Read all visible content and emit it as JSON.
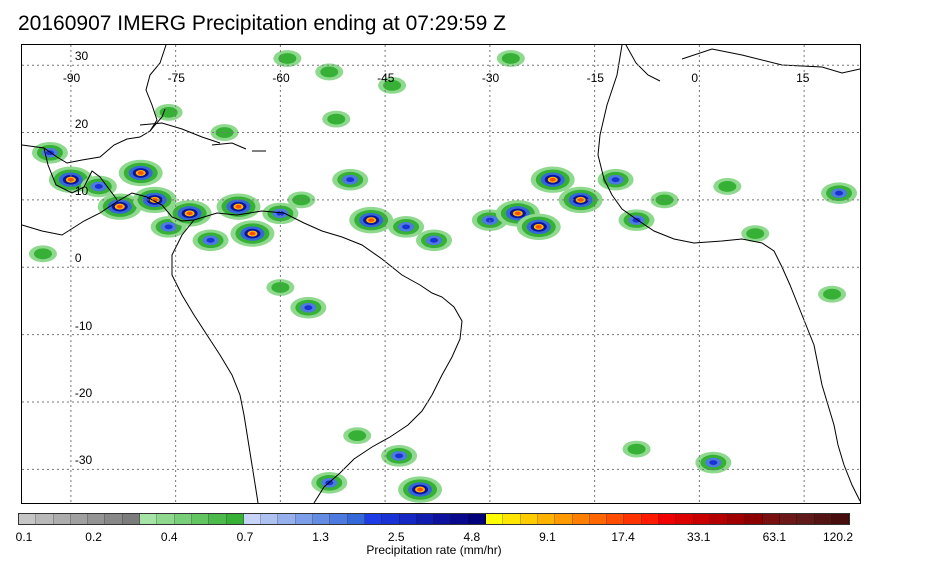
{
  "title": "20160907 IMERG Precipitation ending at 07:29:59 Z",
  "map": {
    "lon_range": [
      -97,
      23
    ],
    "lat_range": [
      -35,
      33
    ],
    "lon_labels": [
      "-90",
      "-75",
      "-60",
      "-45",
      "-30",
      "-15",
      "0",
      "15"
    ],
    "lon_values": [
      -90,
      -75,
      -60,
      -45,
      -30,
      -15,
      0,
      15
    ],
    "lat_labels": [
      "30",
      "20",
      "10",
      "0",
      "-10",
      "-20",
      "-30"
    ],
    "lat_values": [
      30,
      20,
      10,
      0,
      -10,
      -20,
      -30
    ],
    "grid": "dotted",
    "coast_color": "#000000"
  },
  "colorbar": {
    "label": "Precipitation rate (mm/hr)",
    "tick_labels": [
      "0.1",
      "0.2",
      "0.4",
      "0.7",
      "1.3",
      "2.5",
      "4.8",
      "9.1",
      "17.4",
      "33.1",
      "63.1",
      "120.2"
    ],
    "colors": [
      "#c6c6c6",
      "#b9b9b9",
      "#adadad",
      "#a0a0a0",
      "#949494",
      "#888888",
      "#7c7c7c",
      "#a6e3a6",
      "#8fd98f",
      "#79cf79",
      "#62c562",
      "#4cbb4c",
      "#36b136",
      "#c7d4f7",
      "#aec2f2",
      "#96b0ed",
      "#7d9ee8",
      "#658ce3",
      "#4c7ade",
      "#3468d9",
      "#1e3ce6",
      "#1a31d4",
      "#1527c2",
      "#101cb0",
      "#0c129e",
      "#08088c",
      "#00007a",
      "#ffff00",
      "#ffe600",
      "#ffcc00",
      "#ffb300",
      "#ff9900",
      "#ff8000",
      "#ff6600",
      "#ff4d00",
      "#ff3300",
      "#ff1a00",
      "#f00000",
      "#dc0000",
      "#c80000",
      "#b40000",
      "#a00000",
      "#8c0000",
      "#781010",
      "#6c1818",
      "#601a1a",
      "#541414",
      "#480e0e"
    ]
  },
  "precip_cells": [
    {
      "lon": -93,
      "lat": 17,
      "intensity": 2
    },
    {
      "lon": -90,
      "lat": 13,
      "intensity": 3
    },
    {
      "lon": -86,
      "lat": 12,
      "intensity": 2
    },
    {
      "lon": -83,
      "lat": 9,
      "intensity": 3
    },
    {
      "lon": -80,
      "lat": 14,
      "intensity": 3
    },
    {
      "lon": -78,
      "lat": 10,
      "intensity": 3
    },
    {
      "lon": -76,
      "lat": 6,
      "intensity": 2
    },
    {
      "lon": -73,
      "lat": 8,
      "intensity": 3
    },
    {
      "lon": -70,
      "lat": 4,
      "intensity": 2
    },
    {
      "lon": -66,
      "lat": 9,
      "intensity": 3
    },
    {
      "lon": -64,
      "lat": 5,
      "intensity": 3
    },
    {
      "lon": -60,
      "lat": 8,
      "intensity": 2
    },
    {
      "lon": -57,
      "lat": 10,
      "intensity": 1
    },
    {
      "lon": -50,
      "lat": 13,
      "intensity": 2
    },
    {
      "lon": -47,
      "lat": 7,
      "intensity": 3
    },
    {
      "lon": -42,
      "lat": 6,
      "intensity": 2
    },
    {
      "lon": -38,
      "lat": 4,
      "intensity": 2
    },
    {
      "lon": -30,
      "lat": 7,
      "intensity": 2
    },
    {
      "lon": -26,
      "lat": 8,
      "intensity": 3
    },
    {
      "lon": -23,
      "lat": 6,
      "intensity": 3
    },
    {
      "lon": -21,
      "lat": 13,
      "intensity": 3
    },
    {
      "lon": -17,
      "lat": 10,
      "intensity": 3
    },
    {
      "lon": -12,
      "lat": 13,
      "intensity": 2
    },
    {
      "lon": -9,
      "lat": 7,
      "intensity": 2
    },
    {
      "lon": -5,
      "lat": 10,
      "intensity": 1
    },
    {
      "lon": 4,
      "lat": 12,
      "intensity": 1
    },
    {
      "lon": 8,
      "lat": 5,
      "intensity": 1
    },
    {
      "lon": 20,
      "lat": 11,
      "intensity": 2
    },
    {
      "lon": -59,
      "lat": 31,
      "intensity": 1
    },
    {
      "lon": -53,
      "lat": 29,
      "intensity": 1
    },
    {
      "lon": -44,
      "lat": 27,
      "intensity": 1
    },
    {
      "lon": -27,
      "lat": 31,
      "intensity": 1
    },
    {
      "lon": -52,
      "lat": 22,
      "intensity": 1
    },
    {
      "lon": -76,
      "lat": 23,
      "intensity": 1
    },
    {
      "lon": -68,
      "lat": 20,
      "intensity": 1
    },
    {
      "lon": -56,
      "lat": -6,
      "intensity": 2
    },
    {
      "lon": -60,
      "lat": -3,
      "intensity": 1
    },
    {
      "lon": -49,
      "lat": -25,
      "intensity": 1
    },
    {
      "lon": -53,
      "lat": -32,
      "intensity": 2
    },
    {
      "lon": -40,
      "lat": -33,
      "intensity": 3
    },
    {
      "lon": -43,
      "lat": -28,
      "intensity": 2
    },
    {
      "lon": 2,
      "lat": -29,
      "intensity": 2
    },
    {
      "lon": -9,
      "lat": -27,
      "intensity": 1
    },
    {
      "lon": -94,
      "lat": 2,
      "intensity": 1
    },
    {
      "lon": 19,
      "lat": -4,
      "intensity": 1
    }
  ]
}
